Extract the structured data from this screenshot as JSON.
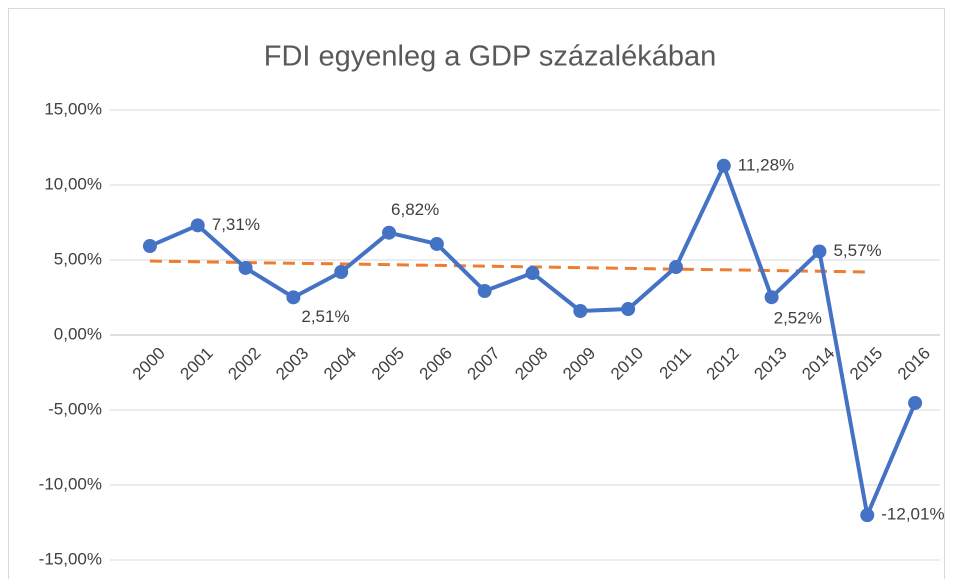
{
  "chart_data": {
    "type": "line",
    "title": "FDI egyenleg a GDP százalékában",
    "categories": [
      "2000",
      "2001",
      "2002",
      "2003",
      "2004",
      "2005",
      "2006",
      "2007",
      "2008",
      "2009",
      "2010",
      "2011",
      "2012",
      "2013",
      "2014",
      "2015",
      "2016"
    ],
    "series": [
      {
        "color": "#4472c4",
        "values": [
          5.93,
          7.31,
          4.47,
          2.51,
          4.2,
          6.82,
          6.07,
          2.93,
          4.13,
          1.6,
          1.73,
          4.53,
          11.28,
          2.52,
          5.57,
          -12.01,
          -4.53
        ],
        "value_labels": [
          null,
          "7,31%",
          null,
          "2,51%",
          null,
          "6,82%",
          null,
          null,
          null,
          null,
          null,
          null,
          "11,28%",
          "2,52%",
          "5,57%",
          "-12,01%",
          null
        ]
      },
      {
        "color": "#ed7d31",
        "dashed": true,
        "values": [
          4.93,
          4.88,
          4.83,
          4.78,
          4.74,
          4.69,
          4.64,
          4.59,
          4.54,
          4.49,
          4.44,
          4.39,
          4.35,
          4.3,
          4.25,
          4.2,
          null
        ]
      }
    ],
    "ylim": [
      -15,
      15
    ],
    "yticks": [
      {
        "value": -15,
        "label": "-15,00%"
      },
      {
        "value": -10,
        "label": "-10,00%"
      },
      {
        "value": -5,
        "label": "-5,00%"
      },
      {
        "value": 0,
        "label": "0,00%"
      },
      {
        "value": 5,
        "label": "5,00%"
      },
      {
        "value": 10,
        "label": "10,00%"
      },
      {
        "value": 15,
        "label": "15,00%"
      }
    ],
    "grid": true
  }
}
